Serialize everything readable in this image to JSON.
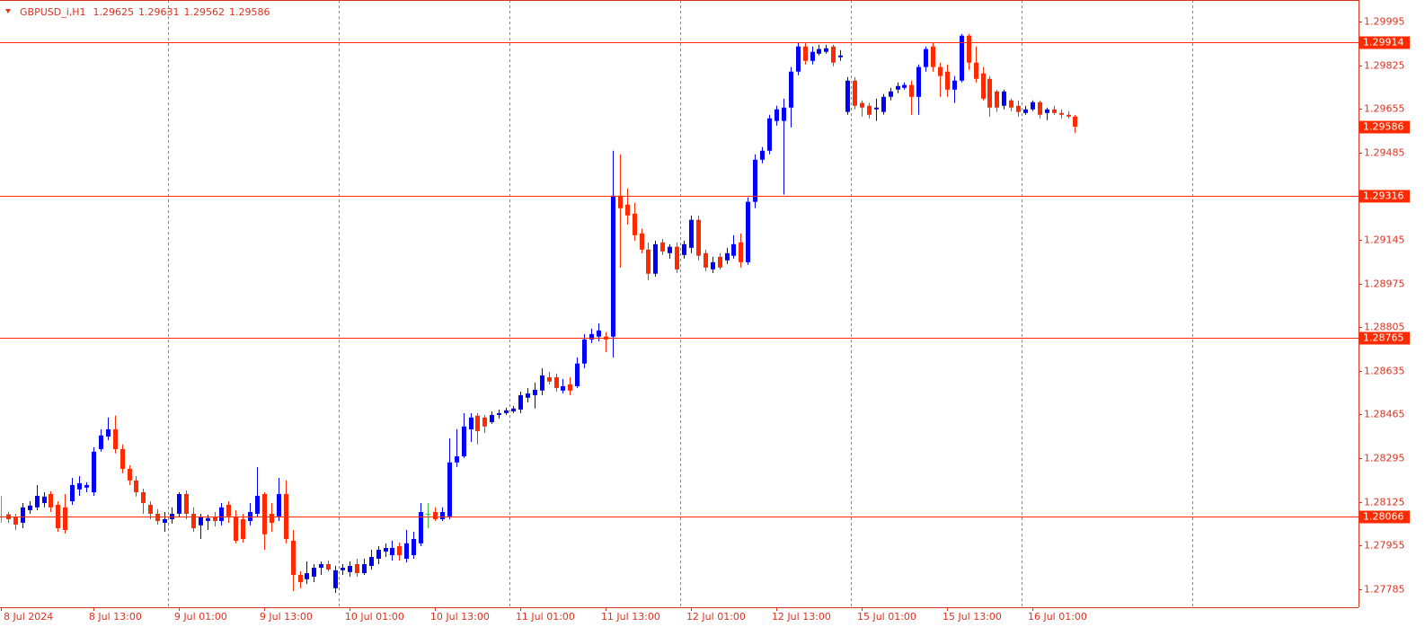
{
  "chart_data": {
    "type": "candlestick",
    "title": "GBPUSD_i,H1",
    "categories": [
      "8 Jul 2024",
      null,
      null,
      null,
      null,
      null,
      null,
      null,
      null,
      null,
      null,
      null,
      null,
      "8 Jul 13:00",
      null,
      null,
      null,
      null,
      null,
      null,
      null,
      null,
      null,
      null,
      null,
      "9 Jul 01:00",
      null,
      null,
      null,
      null,
      null,
      null,
      null,
      null,
      null,
      null,
      null,
      "9 Jul 13:00",
      null,
      null,
      null,
      null,
      null,
      null,
      null,
      null,
      null,
      null,
      null,
      "10 Jul 01:00",
      null,
      null,
      null,
      null,
      null,
      null,
      null,
      null,
      null,
      null,
      null,
      "10 Jul 13:00",
      null,
      null,
      null,
      null,
      null,
      null,
      null,
      null,
      null,
      null,
      null,
      "11 Jul 01:00",
      null,
      null,
      null,
      null,
      null,
      null,
      null,
      null,
      null,
      null,
      null,
      "11 Jul 13:00",
      null,
      null,
      null,
      null,
      null,
      null,
      null,
      null,
      null,
      null,
      null,
      "12 Jul 01:00",
      null,
      null,
      null,
      null,
      null,
      null,
      null,
      null,
      null,
      null,
      null,
      "12 Jul 13:00",
      null,
      null,
      null,
      null,
      null,
      null,
      null,
      null,
      null,
      null,
      null,
      "15 Jul 01:00",
      null,
      null,
      null,
      null,
      null,
      null,
      null,
      null,
      null,
      null,
      null,
      "15 Jul 13:00",
      null,
      null,
      null,
      null,
      null,
      null,
      null,
      null,
      null,
      null,
      null,
      "16 Jul 01:00",
      null,
      null,
      null,
      null,
      null,
      null
    ],
    "open": [
      1.28068,
      1.28076,
      1.28064,
      1.28043,
      1.28092,
      1.28103,
      1.2812,
      1.28155,
      1.28113,
      1.28103,
      1.28127,
      1.28173,
      1.2818,
      1.28162,
      1.2833,
      1.28379,
      1.28407,
      1.2833,
      1.28253,
      1.28208,
      1.28162,
      1.28113,
      1.28078,
      1.28043,
      1.28057,
      1.28078,
      1.28155,
      1.28078,
      1.28033,
      1.2805,
      1.28064,
      1.2805,
      1.28113,
      1.28068,
      1.28057,
      1.2805,
      1.28078,
      1.28155,
      1.28078,
      1.28068,
      1.28155,
      1.27973,
      1.2784,
      1.27823,
      1.27833,
      1.27868,
      1.27882,
      1.27788,
      1.27858,
      1.27851,
      1.27882,
      1.27847,
      1.27875,
      1.27903,
      1.27931,
      1.27917,
      1.27952,
      1.27903,
      1.27917,
      1.27963,
      1.28078,
      1.28085,
      1.28057,
      1.28068,
      1.28278,
      1.28302,
      1.28407,
      1.2846,
      1.28453,
      1.28435,
      1.28463,
      1.2847,
      1.28477,
      1.28484,
      1.2853,
      1.2854,
      1.28558,
      1.2861,
      1.2861,
      1.28558,
      1.28582,
      1.28575,
      1.28663,
      1.28757,
      1.28768,
      1.28768,
      1.28768,
      1.29317,
      1.29282,
      1.29247,
      1.2917,
      1.29107,
      1.29013,
      1.29135,
      1.29093,
      1.29118,
      1.29086,
      1.29114,
      1.29223,
      1.29093,
      1.2903,
      1.29079,
      1.29065,
      1.29083,
      1.29135,
      1.29058,
      1.29293,
      1.29457,
      1.29492,
      1.29608,
      1.29608,
      1.2966,
      1.298,
      1.29898,
      1.29842,
      1.2987,
      1.29877,
      1.29898,
      1.29856,
      1.29643,
      1.29765,
      1.29678,
      1.29667,
      1.29653,
      1.29643,
      1.29702,
      1.2973,
      1.29737,
      1.29748,
      1.29702,
      1.29818,
      1.29898,
      1.29818,
      1.298,
      1.2973,
      1.29765,
      1.2994,
      1.29835,
      1.29793,
      1.29772,
      1.29723,
      1.29667,
      1.29688,
      1.29667,
      1.29639,
      1.29653,
      1.29681,
      1.29639,
      1.29653,
      1.29639,
      1.29632,
      1.29625
    ],
    "high": [
      1.28148,
      1.28085,
      1.28078,
      1.2812,
      1.28127,
      1.2819,
      1.28162,
      1.28166,
      1.28127,
      1.28155,
      1.28218,
      1.28225,
      1.28201,
      1.28337,
      1.28407,
      1.28453,
      1.2846,
      1.28348,
      1.28267,
      1.28225,
      1.28176,
      1.28127,
      1.28096,
      1.28085,
      1.28103,
      1.28162,
      1.28169,
      1.28103,
      1.28078,
      1.28075,
      1.28085,
      1.2812,
      1.28127,
      1.28092,
      1.28078,
      1.2812,
      1.2826,
      1.28162,
      1.2812,
      1.28218,
      1.28208,
      1.28015,
      1.27854,
      1.27893,
      1.27882,
      1.27893,
      1.27896,
      1.27875,
      1.27882,
      1.27893,
      1.27903,
      1.27903,
      1.27938,
      1.27952,
      1.27963,
      1.27973,
      1.27966,
      1.28015,
      1.28008,
      1.2812,
      1.2812,
      1.28103,
      1.28103,
      1.28372,
      1.28407,
      1.2847,
      1.2847,
      1.2847,
      1.28463,
      1.28477,
      1.28484,
      1.28491,
      1.28498,
      1.28554,
      1.28568,
      1.28589,
      1.28645,
      1.28631,
      1.28624,
      1.28603,
      1.2861,
      1.28687,
      1.28778,
      1.28799,
      1.2882,
      1.28785,
      1.29492,
      1.29478,
      1.29345,
      1.29289,
      1.29188,
      1.29135,
      1.29142,
      1.29149,
      1.29128,
      1.29135,
      1.29142,
      1.2924,
      1.2924,
      1.29107,
      1.29079,
      1.29093,
      1.29114,
      1.29163,
      1.2917,
      1.2931,
      1.29478,
      1.29506,
      1.29632,
      1.29667,
      1.29695,
      1.29818,
      1.29912,
      1.29912,
      1.29898,
      1.29905,
      1.29905,
      1.29905,
      1.29884,
      1.29779,
      1.29779,
      1.29688,
      1.29678,
      1.29695,
      1.29713,
      1.29737,
      1.29758,
      1.29758,
      1.29765,
      1.29828,
      1.29898,
      1.29912,
      1.29835,
      1.29828,
      1.29783,
      1.29947,
      1.29947,
      1.29898,
      1.29818,
      1.29783,
      1.2973,
      1.2973,
      1.29695,
      1.29688,
      1.29667,
      1.29688,
      1.29688,
      1.2966,
      1.29667,
      1.29653,
      1.29646,
      1.29631
    ],
    "low": [
      1.28043,
      1.28043,
      1.28015,
      1.28022,
      1.28078,
      1.28092,
      1.28103,
      1.28085,
      1.28008,
      1.28001,
      1.28113,
      1.28148,
      1.28162,
      1.28148,
      1.2832,
      1.28365,
      1.28313,
      1.28236,
      1.2819,
      1.28145,
      1.28078,
      1.28057,
      1.28036,
      1.28008,
      1.2804,
      1.28064,
      1.28057,
      1.28008,
      1.2798,
      1.28015,
      1.28029,
      1.28033,
      1.28043,
      1.27963,
      1.27966,
      1.28033,
      1.28064,
      1.27938,
      1.28008,
      1.2805,
      1.27963,
      1.27777,
      1.27788,
      1.27805,
      1.27812,
      1.2784,
      1.27854,
      1.2777,
      1.2784,
      1.27833,
      1.27833,
      1.2784,
      1.27861,
      1.27882,
      1.2791,
      1.27896,
      1.27896,
      1.27889,
      1.27903,
      1.27952,
      1.28022,
      1.2805,
      1.2805,
      1.28057,
      1.2826,
      1.28295,
      1.28358,
      1.28348,
      1.28393,
      1.28428,
      1.28449,
      1.28463,
      1.2847,
      1.2847,
      1.28512,
      1.28488,
      1.2854,
      1.28582,
      1.28554,
      1.28547,
      1.2854,
      1.28568,
      1.28645,
      1.28743,
      1.2875,
      1.28708,
      1.28687,
      1.29037,
      1.29205,
      1.29142,
      1.29093,
      1.28988,
      1.29002,
      1.29086,
      1.29072,
      1.29016,
      1.29072,
      1.29093,
      1.29065,
      1.29023,
      1.29016,
      1.2903,
      1.29051,
      1.29072,
      1.29037,
      1.29048,
      1.29268,
      1.29443,
      1.29478,
      1.2959,
      1.29321,
      1.29583,
      1.29786,
      1.29828,
      1.29828,
      1.29863,
      1.2987,
      1.29821,
      1.29842,
      1.29632,
      1.29653,
      1.29625,
      1.29618,
      1.29608,
      1.29632,
      1.29688,
      1.29716,
      1.2973,
      1.29632,
      1.29632,
      1.298,
      1.298,
      1.29702,
      1.29702,
      1.29678,
      1.29758,
      1.29807,
      1.29758,
      1.29688,
      1.29625,
      1.29643,
      1.29653,
      1.29646,
      1.29625,
      1.29632,
      1.29646,
      1.29618,
      1.29611,
      1.29632,
      1.29618,
      1.29618,
      1.29562
    ],
    "close": [
      1.28068,
      1.28057,
      1.28036,
      1.28103,
      1.2811,
      1.28148,
      1.28145,
      1.28103,
      1.28022,
      1.28015,
      1.2819,
      1.28197,
      1.2819,
      1.2832,
      1.28383,
      1.28407,
      1.2833,
      1.28253,
      1.28208,
      1.28162,
      1.2812,
      1.28078,
      1.2805,
      1.28057,
      1.28078,
      1.28155,
      1.28078,
      1.28022,
      1.28064,
      1.28061,
      1.2805,
      1.28103,
      1.28068,
      1.27973,
      1.2798,
      1.28085,
      1.28148,
      1.27998,
      1.28043,
      1.28155,
      1.2798,
      1.2784,
      1.27812,
      1.27847,
      1.27868,
      1.27882,
      1.27861,
      1.27858,
      1.27868,
      1.27875,
      1.27847,
      1.27882,
      1.2791,
      1.27938,
      1.27945,
      1.27945,
      1.27917,
      1.27963,
      1.2798,
      1.28085,
      1.28078,
      1.28057,
      1.28085,
      1.28278,
      1.28302,
      1.28418,
      1.28453,
      1.284,
      1.28418,
      1.28463,
      1.2847,
      1.28481,
      1.28488,
      1.2854,
      1.28547,
      1.28561,
      1.28617,
      1.28593,
      1.28568,
      1.28575,
      1.28558,
      1.28663,
      1.28757,
      1.28778,
      1.28792,
      1.28757,
      1.29317,
      1.29268,
      1.2924,
      1.29163,
      1.29107,
      1.29013,
      1.29128,
      1.291,
      1.29118,
      1.2903,
      1.29128,
      1.29223,
      1.29083,
      1.29037,
      1.29058,
      1.29037,
      1.29093,
      1.29128,
      1.29058,
      1.29293,
      1.29457,
      1.29492,
      1.29618,
      1.29653,
      1.2966,
      1.298,
      1.29898,
      1.29842,
      1.29877,
      1.29888,
      1.29891,
      1.29835,
      1.29863,
      1.29765,
      1.29667,
      1.2966,
      1.29632,
      1.2966,
      1.29702,
      1.29723,
      1.29744,
      1.29748,
      1.29702,
      1.29818,
      1.29888,
      1.29818,
      1.29783,
      1.2973,
      1.29765,
      1.2994,
      1.29835,
      1.29772,
      1.29695,
      1.2966,
      1.2966,
      1.29723,
      1.2966,
      1.29643,
      1.29653,
      1.29681,
      1.29632,
      1.29653,
      1.29639,
      1.29632,
      1.29625,
      1.29586
    ],
    "up_color": "#0000ff",
    "down_color": "#ff2a00",
    "doji_color": "#3cc33c",
    "ylim": [
      1.27714,
      1.30079
    ],
    "yticks": [
      1.29995,
      1.29825,
      1.29655,
      1.29485,
      1.29145,
      1.28975,
      1.28805,
      1.28635,
      1.28465,
      1.28295,
      1.28125,
      1.27955,
      1.27785
    ],
    "levels": [
      1.29914,
      1.29316,
      1.28765,
      1.28066
    ],
    "level_color": "#ff2a00",
    "period_separators": true
  }
}
